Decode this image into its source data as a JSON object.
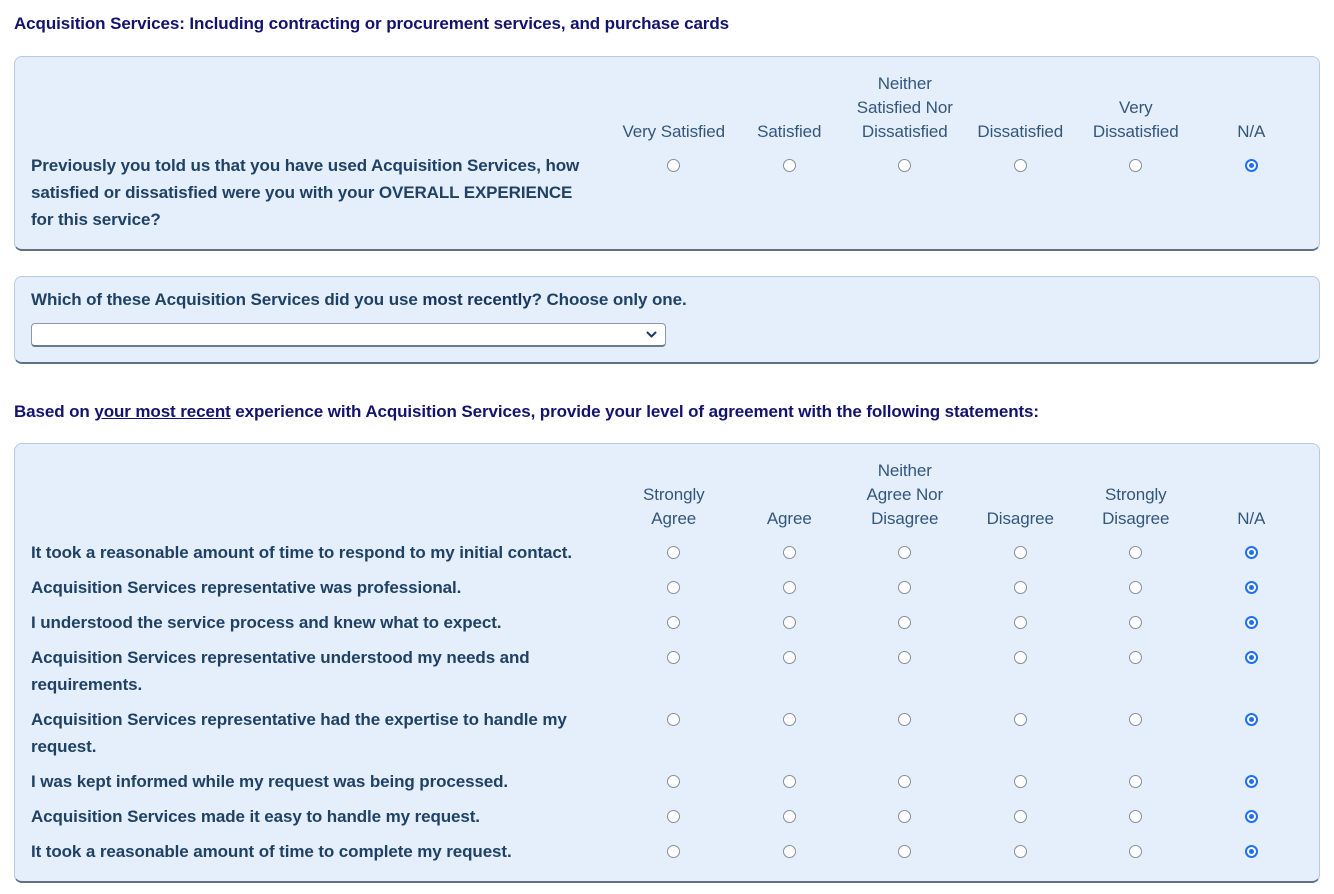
{
  "page": {
    "title": "Acquisition Services: Including contracting or procurement services, and purchase cards"
  },
  "satisfaction_matrix": {
    "columns": [
      "Very Satisfied",
      "Satisfied",
      "Neither\nSatisfied Nor\nDissatisfied",
      "Dissatisfied",
      "Very\nDissatisfied",
      "N/A"
    ],
    "rows": [
      {
        "statement": "Previously you told us that you have used Acquisition Services, how satisfied or dissatisfied were you with your OVERALL EXPERIENCE for this service?",
        "selected": "N/A"
      }
    ]
  },
  "recent_service": {
    "question_prefix": "Which of these Acquisition Services did you use ",
    "question_bold": "most recently",
    "question_suffix": "? Choose only one.",
    "dropdown_value": ""
  },
  "agreement_section": {
    "heading_prefix": "Based on ",
    "heading_emphasis": "your most recent",
    "heading_suffix": " experience with Acquisition Services, provide your level of agreement with the following statements:",
    "columns": [
      "Strongly\nAgree",
      "Agree",
      "Neither\nAgree Nor\nDisagree",
      "Disagree",
      "Strongly\nDisagree",
      "N/A"
    ],
    "rows": [
      {
        "statement": "It took a reasonable amount of time to respond to my initial contact.",
        "selected": "N/A"
      },
      {
        "statement": "Acquisition Services representative was professional.",
        "selected": "N/A"
      },
      {
        "statement": "I understood the service process and knew what to expect.",
        "selected": "N/A"
      },
      {
        "statement": "Acquisition Services representative understood my needs and requirements.",
        "selected": "N/A"
      },
      {
        "statement": "Acquisition Services representative had the expertise to handle my request.",
        "selected": "N/A"
      },
      {
        "statement": "I was kept informed while my request was being processed.",
        "selected": "N/A"
      },
      {
        "statement": "Acquisition Services made it easy to handle my request.",
        "selected": "N/A"
      },
      {
        "statement": "It took a reasonable amount of time to complete my request.",
        "selected": "N/A"
      }
    ]
  },
  "colors": {
    "panel_background": "#e5effc",
    "panel_bottom_border": "#5f7183",
    "title_text": "#13136e",
    "statement_text": "#1e4164",
    "column_header_text": "#33567b",
    "radio_selected_accent": "#1f6ff2"
  }
}
